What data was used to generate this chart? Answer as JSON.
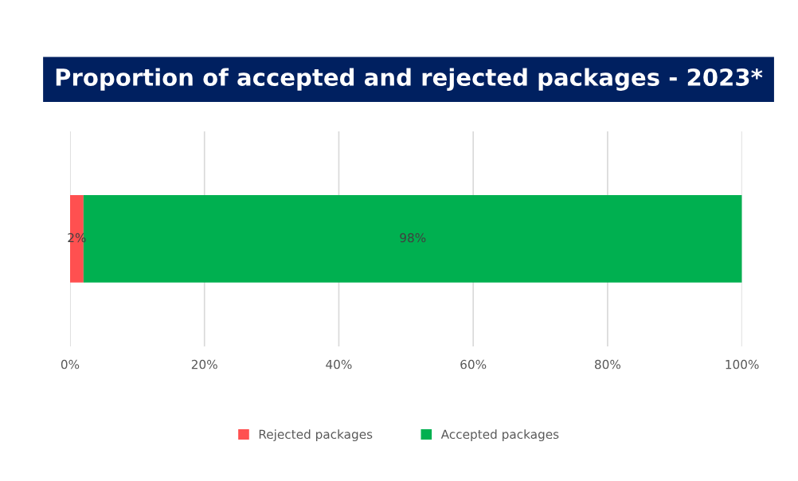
{
  "chart_data": {
    "type": "bar",
    "orientation": "horizontal",
    "stacked": true,
    "title": "Proportion of accepted and rejected packages - 2023*",
    "categories": [
      null
    ],
    "series": [
      {
        "name": "Rejected packages",
        "color": "#ff5050",
        "values": [
          2
        ],
        "value_labels": [
          "2%"
        ]
      },
      {
        "name": "Accepted packages",
        "color": "#00b050",
        "values": [
          98
        ],
        "value_labels": [
          "98%"
        ]
      }
    ],
    "xlim": [
      0,
      100
    ],
    "xticks": [
      {
        "value": 0,
        "label": "0%"
      },
      {
        "value": 20,
        "label": "20%"
      },
      {
        "value": 40,
        "label": "40%"
      },
      {
        "value": 60,
        "label": "60%"
      },
      {
        "value": 80,
        "label": "80%"
      },
      {
        "value": 100,
        "label": "100%"
      }
    ],
    "grid": "x",
    "legend": "bottom"
  }
}
